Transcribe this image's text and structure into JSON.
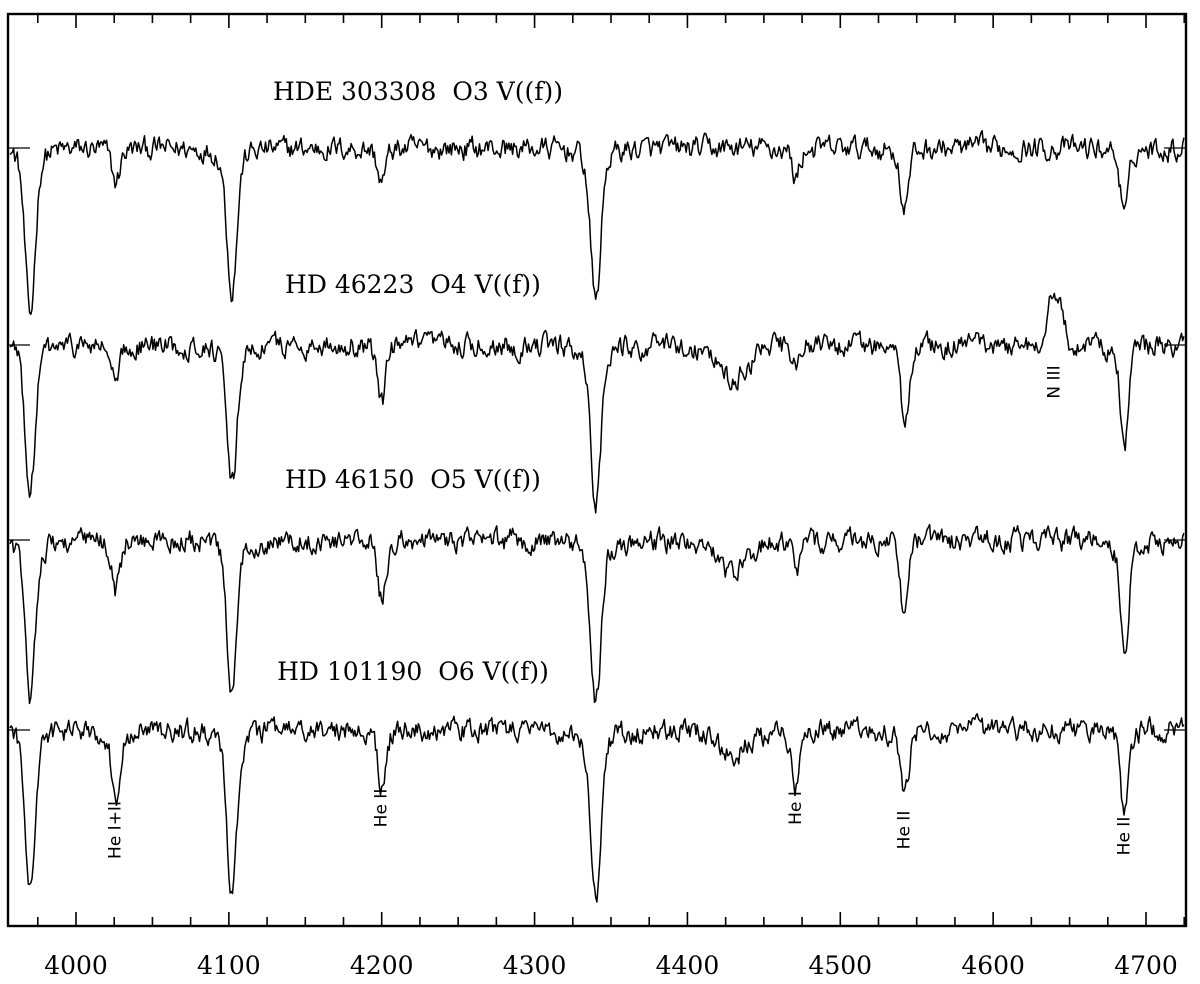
{
  "chart_data": {
    "type": "line",
    "title": "",
    "xlabel": "",
    "ylabel": "",
    "xlim": [
      3950,
      4750
    ],
    "x_ticks": [
      4000,
      4100,
      4200,
      4300,
      4400,
      4500,
      4600,
      4700
    ],
    "x_tick_labels": [
      "4000",
      "4100",
      "4200",
      "4300",
      "4400",
      "4500",
      "4600",
      "4700"
    ],
    "grid": false,
    "series": [
      {
        "name": "HDE 303308  O3 V((f))",
        "absorption_lines": [
          {
            "x": 3970,
            "depth": 5.0,
            "width": 3.2
          },
          {
            "x": 4026,
            "depth": 1.0,
            "width": 2.6
          },
          {
            "x": 4102,
            "depth": 4.2,
            "width": 3.2
          },
          {
            "x": 4200,
            "depth": 1.0,
            "width": 2.6
          },
          {
            "x": 4340,
            "depth": 4.5,
            "width": 3.3
          },
          {
            "x": 4471,
            "depth": 0.9,
            "width": 2.4
          },
          {
            "x": 4542,
            "depth": 1.8,
            "width": 2.6
          },
          {
            "x": 4686,
            "depth": 2.0,
            "width": 2.6
          }
        ],
        "emission_lines": []
      },
      {
        "name": "HD 46223  O4 V((f))",
        "absorption_lines": [
          {
            "x": 3970,
            "depth": 4.3,
            "width": 3.2
          },
          {
            "x": 4026,
            "depth": 1.2,
            "width": 2.6
          },
          {
            "x": 4102,
            "depth": 4.2,
            "width": 3.2
          },
          {
            "x": 4200,
            "depth": 1.7,
            "width": 2.6
          },
          {
            "x": 4340,
            "depth": 4.6,
            "width": 3.3
          },
          {
            "x": 4430,
            "depth": 1.0,
            "width": 9.0
          },
          {
            "x": 4471,
            "depth": 0.6,
            "width": 2.4
          },
          {
            "x": 4542,
            "depth": 2.3,
            "width": 2.6
          },
          {
            "x": 4686,
            "depth": 3.0,
            "width": 2.6
          }
        ],
        "emission_lines": [
          {
            "x": 4640,
            "height": 1.6,
            "width": 4.5
          }
        ]
      },
      {
        "name": "HD 46150  O5 V((f))",
        "absorption_lines": [
          {
            "x": 3970,
            "depth": 4.6,
            "width": 3.2
          },
          {
            "x": 4026,
            "depth": 1.4,
            "width": 2.6
          },
          {
            "x": 4102,
            "depth": 4.6,
            "width": 3.2
          },
          {
            "x": 4200,
            "depth": 1.8,
            "width": 2.6
          },
          {
            "x": 4340,
            "depth": 4.8,
            "width": 3.3
          },
          {
            "x": 4430,
            "depth": 1.0,
            "width": 9.0
          },
          {
            "x": 4471,
            "depth": 0.9,
            "width": 2.4
          },
          {
            "x": 4542,
            "depth": 2.2,
            "width": 2.6
          },
          {
            "x": 4686,
            "depth": 3.4,
            "width": 2.6
          }
        ],
        "emission_lines": []
      },
      {
        "name": "HD 101190  O6 V((f))",
        "absorption_lines": [
          {
            "x": 3970,
            "depth": 4.7,
            "width": 3.2
          },
          {
            "x": 4026,
            "depth": 2.0,
            "width": 2.6
          },
          {
            "x": 4102,
            "depth": 4.8,
            "width": 3.2
          },
          {
            "x": 4200,
            "depth": 1.6,
            "width": 2.6
          },
          {
            "x": 4340,
            "depth": 5.0,
            "width": 3.3
          },
          {
            "x": 4430,
            "depth": 0.7,
            "width": 9.0
          },
          {
            "x": 4471,
            "depth": 1.7,
            "width": 2.4
          },
          {
            "x": 4542,
            "depth": 2.1,
            "width": 2.6
          },
          {
            "x": 4686,
            "depth": 2.4,
            "width": 2.6
          }
        ],
        "emission_lines": []
      }
    ],
    "annotations": [
      {
        "text": "N III",
        "x": 4640,
        "spectrum": 2
      },
      {
        "text": "He I+II",
        "x": 4026,
        "spectrum": 4
      },
      {
        "text": "He II",
        "x": 4200,
        "spectrum": 4
      },
      {
        "text": "He I",
        "x": 4471,
        "spectrum": 4
      },
      {
        "text": "He II",
        "x": 4542,
        "spectrum": 4
      },
      {
        "text": "He II",
        "x": 4686,
        "spectrum": 4
      }
    ]
  }
}
